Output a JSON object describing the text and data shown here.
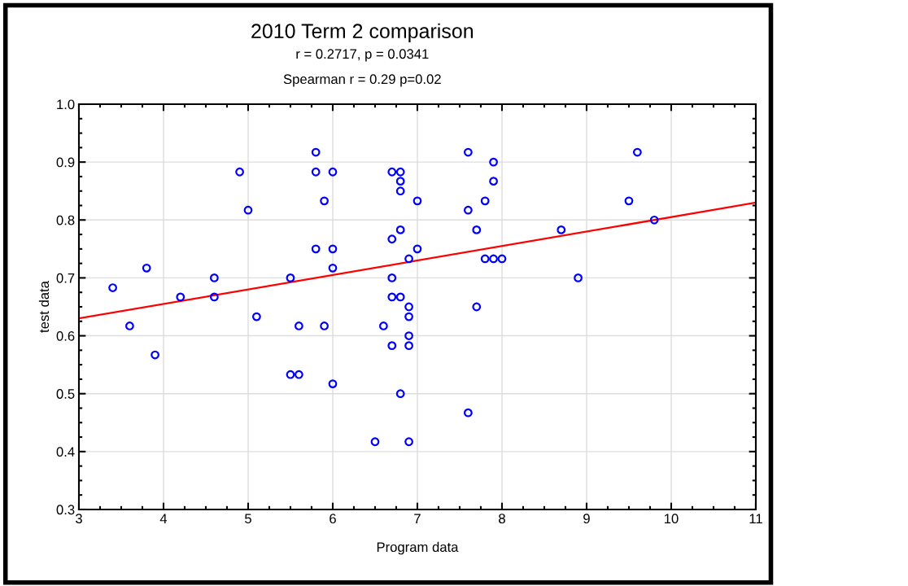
{
  "chart_data": {
    "type": "scatter",
    "title": "2010 Term 2 comparison",
    "subtitle": "r = 0.2717, p = 0.0341",
    "annotations": [
      "Spearman r = 0.29 p=0.02"
    ],
    "xlabel": "Program data",
    "ylabel": "test data",
    "xlim": [
      3,
      11
    ],
    "xticks": [
      3,
      4,
      5,
      6,
      7,
      8,
      9,
      10,
      11
    ],
    "ylim": [
      0.3,
      1.0
    ],
    "yticks": [
      {
        "value": 0.3,
        "label": "0.3"
      },
      {
        "value": 0.4,
        "label": "0.4"
      },
      {
        "value": 0.5,
        "label": "0.5"
      },
      {
        "value": 0.6,
        "label": "0.6"
      },
      {
        "value": 0.7,
        "label": "0.7"
      },
      {
        "value": 0.8,
        "label": "0.8"
      },
      {
        "value": 0.9,
        "label": "0.9"
      },
      {
        "value": 1.0,
        "label": "1.0"
      }
    ],
    "grid": true,
    "marker": "circle",
    "series": [
      {
        "color": "#0000ff",
        "x": [
          3.4,
          3.6,
          3.8,
          3.9,
          4.2,
          4.6,
          4.6,
          4.9,
          5.0,
          5.1,
          5.5,
          5.5,
          5.6,
          5.6,
          5.8,
          5.8,
          5.8,
          5.9,
          5.9,
          6.0,
          6.0,
          6.0,
          6.0,
          6.5,
          6.6,
          6.7,
          6.7,
          6.7,
          6.7,
          6.7,
          6.8,
          6.8,
          6.8,
          6.8,
          6.8,
          6.8,
          6.9,
          6.9,
          6.9,
          6.9,
          6.9,
          6.9,
          7.0,
          7.0,
          7.6,
          7.6,
          7.6,
          7.7,
          7.7,
          7.8,
          7.8,
          7.9,
          7.9,
          7.9,
          8.0,
          8.7,
          8.9,
          9.5,
          9.6,
          9.8
        ],
        "values": [
          0.683,
          0.617,
          0.717,
          0.567,
          0.667,
          0.7,
          0.667,
          0.883,
          0.817,
          0.633,
          0.7,
          0.533,
          0.617,
          0.533,
          0.917,
          0.883,
          0.75,
          0.833,
          0.617,
          0.883,
          0.75,
          0.717,
          0.517,
          0.417,
          0.617,
          0.883,
          0.767,
          0.7,
          0.667,
          0.583,
          0.883,
          0.867,
          0.85,
          0.783,
          0.667,
          0.5,
          0.733,
          0.65,
          0.633,
          0.6,
          0.583,
          0.417,
          0.833,
          0.75,
          0.917,
          0.817,
          0.467,
          0.783,
          0.65,
          0.833,
          0.733,
          0.9,
          0.867,
          0.733,
          0.733,
          0.783,
          0.7,
          0.833,
          0.917,
          0.8
        ]
      },
      {
        "type": "line",
        "color": "#ff0000",
        "x": [
          3,
          11
        ],
        "values": [
          0.63,
          0.83
        ],
        "marker": "none"
      }
    ]
  }
}
